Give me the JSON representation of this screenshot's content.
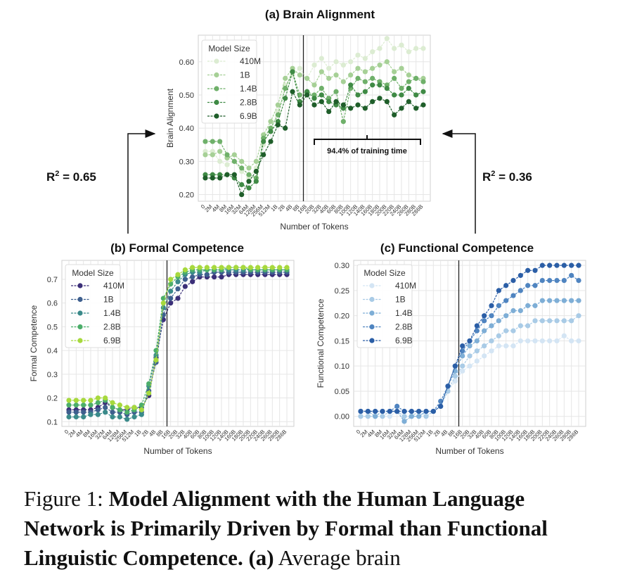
{
  "chart_data": [
    {
      "id": "a",
      "type": "line",
      "title": "(a) Brain Alignment",
      "xlabel": "Number of Tokens",
      "ylabel": "Brain Alignment",
      "ylim": [
        0.18,
        0.68
      ],
      "yticks": [
        0.2,
        0.3,
        0.4,
        0.5,
        0.6
      ],
      "grid": true,
      "legend": {
        "title": "Model Size",
        "placement": "top-left"
      },
      "x": [
        "0",
        "2M",
        "4M",
        "8M",
        "16M",
        "32M",
        "64M",
        "128M",
        "256M",
        "512M",
        "1B",
        "2B",
        "4B",
        "8B",
        "16B",
        "20B",
        "32B",
        "40B",
        "60B",
        "80B",
        "100B",
        "120B",
        "140B",
        "160B",
        "180B",
        "200B",
        "220B",
        "240B",
        "260B",
        "280B",
        "286B"
      ],
      "vline_index": 14,
      "annotation": "94.4% of training time",
      "series": [
        {
          "name": "410M",
          "color": "#dcecd2",
          "values": [
            0.33,
            0.33,
            0.3,
            0.29,
            0.3,
            0.27,
            0.25,
            0.28,
            0.35,
            0.4,
            0.45,
            0.53,
            0.56,
            0.58,
            0.55,
            0.59,
            0.61,
            0.58,
            0.6,
            0.59,
            0.6,
            0.62,
            0.61,
            0.63,
            0.64,
            0.67,
            0.64,
            0.65,
            0.63,
            0.64,
            0.64
          ]
        },
        {
          "name": "1B",
          "color": "#a6d096",
          "values": [
            0.32,
            0.32,
            0.33,
            0.31,
            0.32,
            0.3,
            0.28,
            0.3,
            0.38,
            0.42,
            0.47,
            0.55,
            0.58,
            0.56,
            0.55,
            0.53,
            0.57,
            0.55,
            0.56,
            0.54,
            0.56,
            0.58,
            0.57,
            0.58,
            0.59,
            0.6,
            0.57,
            0.58,
            0.56,
            0.55,
            0.55
          ]
        },
        {
          "name": "1.4B",
          "color": "#6fb06a",
          "values": [
            0.36,
            0.36,
            0.36,
            0.32,
            0.3,
            0.28,
            0.26,
            0.25,
            0.37,
            0.4,
            0.44,
            0.52,
            0.57,
            0.5,
            0.51,
            0.5,
            0.52,
            0.49,
            0.51,
            0.42,
            0.52,
            0.55,
            0.54,
            0.55,
            0.54,
            0.53,
            0.55,
            0.52,
            0.54,
            0.55,
            0.54
          ]
        },
        {
          "name": "2.8B",
          "color": "#3f8a45",
          "values": [
            0.26,
            0.26,
            0.26,
            0.26,
            0.25,
            0.23,
            0.22,
            0.24,
            0.36,
            0.39,
            0.42,
            0.49,
            0.57,
            0.48,
            0.51,
            0.49,
            0.5,
            0.48,
            0.47,
            0.46,
            0.53,
            0.5,
            0.51,
            0.53,
            0.53,
            0.52,
            0.5,
            0.5,
            0.52,
            0.5,
            0.51
          ]
        },
        {
          "name": "6.9B",
          "color": "#1f5e2a",
          "values": [
            0.25,
            0.25,
            0.25,
            0.26,
            0.26,
            0.2,
            0.24,
            0.27,
            0.32,
            0.36,
            0.41,
            0.4,
            0.51,
            0.47,
            0.5,
            0.47,
            0.48,
            0.45,
            0.48,
            0.47,
            0.46,
            0.47,
            0.46,
            0.48,
            0.49,
            0.48,
            0.44,
            0.46,
            0.48,
            0.46,
            0.47
          ]
        }
      ]
    },
    {
      "id": "b",
      "type": "line",
      "title": "(b) Formal Competence",
      "xlabel": "Number of Tokens",
      "ylabel": "Formal Competence",
      "ylim": [
        0.08,
        0.78
      ],
      "yticks": [
        0.1,
        0.2,
        0.3,
        0.4,
        0.5,
        0.6,
        0.7
      ],
      "grid": true,
      "legend": {
        "title": "Model Size",
        "placement": "top-left"
      },
      "x": [
        "0",
        "2M",
        "4M",
        "8M",
        "16M",
        "32M",
        "64M",
        "128M",
        "256M",
        "512M",
        "1B",
        "2B",
        "4B",
        "8B",
        "16B",
        "20B",
        "32B",
        "40B",
        "60B",
        "80B",
        "100B",
        "120B",
        "140B",
        "160B",
        "180B",
        "200B",
        "220B",
        "240B",
        "260B",
        "280B",
        "286B"
      ],
      "vline_index": 14,
      "series": [
        {
          "name": "410M",
          "color": "#3b2f78",
          "values": [
            0.15,
            0.15,
            0.15,
            0.15,
            0.16,
            0.18,
            0.16,
            0.15,
            0.15,
            0.16,
            0.16,
            0.21,
            0.37,
            0.53,
            0.6,
            0.62,
            0.67,
            0.69,
            0.71,
            0.71,
            0.71,
            0.71,
            0.72,
            0.72,
            0.72,
            0.72,
            0.72,
            0.72,
            0.72,
            0.72,
            0.72
          ]
        },
        {
          "name": "1B",
          "color": "#3e5f8e",
          "values": [
            0.14,
            0.14,
            0.14,
            0.14,
            0.15,
            0.16,
            0.14,
            0.14,
            0.13,
            0.14,
            0.14,
            0.23,
            0.35,
            0.55,
            0.62,
            0.66,
            0.7,
            0.71,
            0.72,
            0.72,
            0.73,
            0.73,
            0.73,
            0.73,
            0.73,
            0.73,
            0.73,
            0.73,
            0.73,
            0.73,
            0.73
          ]
        },
        {
          "name": "1.4B",
          "color": "#3a8a8a",
          "values": [
            0.12,
            0.12,
            0.12,
            0.13,
            0.13,
            0.14,
            0.12,
            0.12,
            0.11,
            0.12,
            0.13,
            0.25,
            0.38,
            0.58,
            0.65,
            0.69,
            0.72,
            0.73,
            0.73,
            0.74,
            0.74,
            0.74,
            0.74,
            0.74,
            0.74,
            0.74,
            0.74,
            0.74,
            0.74,
            0.74,
            0.74
          ]
        },
        {
          "name": "2.8B",
          "color": "#4cae6a",
          "values": [
            0.17,
            0.17,
            0.17,
            0.17,
            0.18,
            0.19,
            0.16,
            0.15,
            0.14,
            0.15,
            0.17,
            0.26,
            0.4,
            0.62,
            0.68,
            0.71,
            0.73,
            0.74,
            0.74,
            0.74,
            0.74,
            0.74,
            0.75,
            0.75,
            0.75,
            0.74,
            0.74,
            0.74,
            0.74,
            0.74,
            0.74
          ]
        },
        {
          "name": "6.9B",
          "color": "#a7d93d",
          "values": [
            0.19,
            0.19,
            0.19,
            0.19,
            0.2,
            0.2,
            0.18,
            0.17,
            0.16,
            0.16,
            0.15,
            0.22,
            0.36,
            0.6,
            0.7,
            0.72,
            0.74,
            0.75,
            0.75,
            0.75,
            0.75,
            0.75,
            0.75,
            0.75,
            0.75,
            0.75,
            0.75,
            0.75,
            0.75,
            0.75,
            0.75
          ]
        }
      ]
    },
    {
      "id": "c",
      "type": "line",
      "title": "(c) Functional Competence",
      "xlabel": "Number of Tokens",
      "ylabel": "Functional Competence",
      "ylim": [
        -0.02,
        0.31
      ],
      "yticks": [
        0.0,
        0.05,
        0.1,
        0.15,
        0.2,
        0.25,
        0.3
      ],
      "grid": true,
      "legend": {
        "title": "Model Size",
        "placement": "top-left"
      },
      "x": [
        "0",
        "2M",
        "4M",
        "8M",
        "16M",
        "32M",
        "64M",
        "128M",
        "256M",
        "512M",
        "1B",
        "2B",
        "4B",
        "8B",
        "16B",
        "20B",
        "32B",
        "40B",
        "60B",
        "80B",
        "100B",
        "120B",
        "140B",
        "160B",
        "180B",
        "200B",
        "220B",
        "240B",
        "260B",
        "280B",
        "286B"
      ],
      "vline_index": 14,
      "series": [
        {
          "name": "410M",
          "color": "#d4e5f4",
          "values": [
            0.0,
            0.0,
            0.0,
            0.0,
            0.0,
            0.01,
            0.0,
            0.0,
            0.0,
            0.0,
            0.01,
            0.02,
            0.05,
            0.07,
            0.09,
            0.1,
            0.11,
            0.12,
            0.13,
            0.14,
            0.14,
            0.14,
            0.15,
            0.15,
            0.15,
            0.15,
            0.15,
            0.15,
            0.16,
            0.15,
            0.15
          ]
        },
        {
          "name": "1B",
          "color": "#a9cbe6",
          "values": [
            0.0,
            0.0,
            0.0,
            0.0,
            0.01,
            0.01,
            0.0,
            0.0,
            0.01,
            0.0,
            0.01,
            0.02,
            0.05,
            0.08,
            0.1,
            0.12,
            0.13,
            0.14,
            0.15,
            0.16,
            0.17,
            0.17,
            0.18,
            0.18,
            0.19,
            0.19,
            0.19,
            0.19,
            0.19,
            0.19,
            0.2
          ]
        },
        {
          "name": "1.4B",
          "color": "#7eaed6",
          "values": [
            0.01,
            0.01,
            0.0,
            0.01,
            0.01,
            0.01,
            -0.01,
            0.0,
            0.0,
            0.01,
            0.01,
            0.02,
            0.06,
            0.09,
            0.12,
            0.14,
            0.15,
            0.17,
            0.18,
            0.19,
            0.2,
            0.21,
            0.21,
            0.22,
            0.22,
            0.23,
            0.23,
            0.23,
            0.23,
            0.23,
            0.23
          ]
        },
        {
          "name": "2.8B",
          "color": "#4f84c0",
          "values": [
            0.01,
            0.01,
            0.01,
            0.01,
            0.01,
            0.02,
            0.01,
            0.01,
            0.01,
            0.01,
            0.01,
            0.03,
            0.06,
            0.1,
            0.13,
            0.15,
            0.17,
            0.19,
            0.2,
            0.22,
            0.23,
            0.24,
            0.25,
            0.26,
            0.26,
            0.27,
            0.27,
            0.27,
            0.27,
            0.28,
            0.27
          ]
        },
        {
          "name": "6.9B",
          "color": "#2b5ea6",
          "values": [
            0.01,
            0.01,
            0.01,
            0.01,
            0.01,
            0.01,
            0.01,
            0.01,
            0.01,
            0.01,
            0.01,
            0.02,
            0.06,
            0.1,
            0.14,
            0.15,
            0.18,
            0.2,
            0.22,
            0.25,
            0.26,
            0.27,
            0.28,
            0.29,
            0.29,
            0.3,
            0.3,
            0.3,
            0.3,
            0.3,
            0.3
          ]
        }
      ]
    }
  ],
  "connectors": {
    "left_label": "0.65",
    "right_label": "0.36"
  },
  "caption": {
    "lead": "Figure 1:",
    "bold": "Model Alignment with the Human Language Network is Primarily Driven by Formal than Functional Linguistic Competence.",
    "panel_ref": "(a)",
    "tail": "Average brain"
  }
}
